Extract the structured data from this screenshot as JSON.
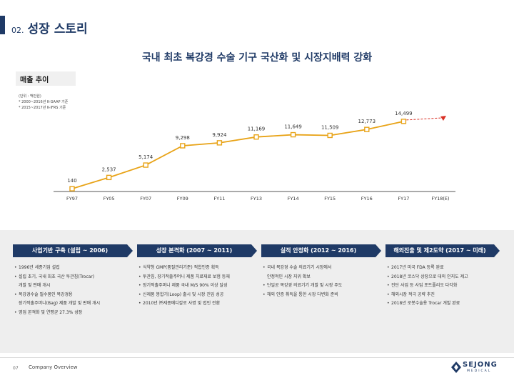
{
  "header": {
    "number": "02.",
    "title": "성장 스토리"
  },
  "headline": "국내 최초 복강경 수술 기구 국산화 및 시장지배력 강화",
  "sales_section": {
    "label": "매출 추이",
    "unit_note": "(단위 : 백만원)",
    "notes": [
      "* 2000~2016년 K-GAAP 기준",
      "* 2015~2017년 K-IFRS 기준"
    ]
  },
  "chart_data": {
    "type": "line",
    "categories": [
      "FY97",
      "FY05",
      "FY07",
      "FY09",
      "FY11",
      "FY13",
      "FY14",
      "FY15",
      "FY16",
      "FY17",
      "FY18(E)"
    ],
    "values": [
      140,
      2537,
      5174,
      9298,
      9924,
      11169,
      11649,
      11509,
      12773,
      14499,
      null
    ],
    "value_labels": [
      "140",
      "2,537",
      "5,174",
      "9,298",
      "9,924",
      "11,169",
      "11,649",
      "11,509",
      "12,773",
      "14,499",
      ""
    ],
    "trend_arrow": "FY18(E) dashed upward arrow",
    "ylim": [
      0,
      16000
    ],
    "line_color": "#e8a317",
    "arrow_color": "#d93025",
    "grid": false,
    "title": "",
    "xlabel": "",
    "ylabel": ""
  },
  "phases": [
    {
      "title": "사업기반 구축 (설립 ~ 2006)",
      "items": [
        {
          "text": "1996년 세종기업 설립",
          "bullet": true
        },
        {
          "text": "설립 초기, 국내 최초 국산 투관침(Trocar)",
          "bullet": true
        },
        {
          "text": "개발 및 판매 개시",
          "bullet": false
        },
        {
          "text": "복강경수술 필수품인 복강경용",
          "bullet": true
        },
        {
          "text": "장기적출주머니(Bag) 제품 개발 및 판매 개시",
          "bullet": false
        },
        {
          "text": "영업 본격화 및 연평균 27.3% 성장",
          "bullet": true
        }
      ]
    },
    {
      "title": "성장 본격화 (2007 ~ 2011)",
      "items": [
        {
          "text": "식약청 GMP(품질관리기준) 적합인증 획득",
          "bullet": true
        },
        {
          "text": "투관침, 장기적출주머니 제품 치료재료 보험 등재",
          "bullet": true
        },
        {
          "text": "장기적출주머니 제품 국내 M/S 90% 이상 달성",
          "bullet": true
        },
        {
          "text": "신제품 봉합기(Loop) 출시 및 시장 진입 성공",
          "bullet": true
        },
        {
          "text": "2010년 ㈜세종메디칼로 사명 및 법인 전환",
          "bullet": true
        }
      ]
    },
    {
      "title": "실적 안정화 (2012 ~ 2016)",
      "items": [
        {
          "text": "국내 복강경 수술 의료기기 시장에서",
          "bullet": true
        },
        {
          "text": "안정적인 시장 지위 확보",
          "bullet": false
        },
        {
          "text": "단일공 복강경 의료기기 개발 및 시장 주도",
          "bullet": true
        },
        {
          "text": "해외 인증 취득을 통한 시장 다변화 준비",
          "bullet": true
        }
      ]
    },
    {
      "title": "해외진출 및 제2도약 (2017 ~ 미래)",
      "items": [
        {
          "text": "2017년 미국 FDA 등록 완료",
          "bullet": true
        },
        {
          "text": "2018년 코스닥 상장으로 대외 인지도 제고",
          "bullet": true
        },
        {
          "text": "진단 사업 등 사업 포트폴리오 다각화",
          "bullet": true
        },
        {
          "text": "해외시장 적극 공략 추진",
          "bullet": true
        },
        {
          "text": "2018년 로봇수술용 Trocar 개발 완료",
          "bullet": true
        }
      ]
    }
  ],
  "footer": {
    "page": "07",
    "text": "Company Overview"
  },
  "logo": {
    "name": "SEJONG",
    "sub": "MEDICAL"
  },
  "colors": {
    "navy": "#1f3a66",
    "band": "#eeeeee"
  }
}
